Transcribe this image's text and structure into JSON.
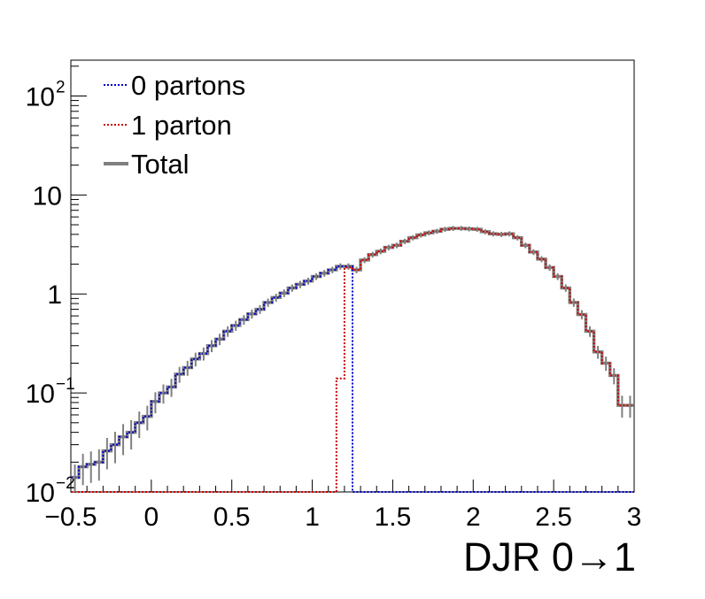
{
  "chart_data": {
    "type": "line",
    "xlabel": "DJR 0→1",
    "y_scale": "log",
    "xlim": [
      -0.5,
      3.0
    ],
    "ylim": [
      0.01,
      230
    ],
    "grid": false,
    "legend_position": "top-left",
    "x_ticks": [
      "−0.5",
      "0",
      "0.5",
      "1",
      "1.5",
      "2",
      "2.5",
      "3"
    ],
    "x_tick_values": [
      -0.5,
      0,
      0.5,
      1,
      1.5,
      2,
      2.5,
      3
    ],
    "y_ticks": [
      {
        "value": 0.01,
        "base": "10",
        "exp": "−2"
      },
      {
        "value": 0.1,
        "base": "10",
        "exp": "−1"
      },
      {
        "value": 1,
        "base": "1",
        "exp": ""
      },
      {
        "value": 10,
        "base": "10",
        "exp": ""
      },
      {
        "value": 100,
        "base": "10",
        "exp": "2"
      }
    ],
    "bin_edges": [
      -0.5,
      -0.45,
      -0.4,
      -0.35,
      -0.3,
      -0.25,
      -0.2,
      -0.15,
      -0.1,
      -0.05,
      0.0,
      0.05,
      0.1,
      0.15,
      0.2,
      0.25,
      0.3,
      0.35,
      0.4,
      0.45,
      0.5,
      0.55,
      0.6,
      0.65,
      0.7,
      0.75,
      0.8,
      0.85,
      0.9,
      0.95,
      1.0,
      1.05,
      1.1,
      1.15,
      1.2,
      1.25,
      1.3,
      1.35,
      1.4,
      1.45,
      1.5,
      1.55,
      1.6,
      1.65,
      1.7,
      1.75,
      1.8,
      1.85,
      1.9,
      1.95,
      2.0,
      2.05,
      2.1,
      2.15,
      2.2,
      2.25,
      2.3,
      2.35,
      2.4,
      2.45,
      2.5,
      2.55,
      2.6,
      2.65,
      2.7,
      2.75,
      2.8,
      2.85,
      2.9,
      2.95,
      3.0
    ],
    "series": [
      {
        "name": "0 partons",
        "color": "#0000cc",
        "line_style": "dotted",
        "values": [
          0.014,
          0.018,
          0.019,
          0.02,
          0.026,
          0.03,
          0.036,
          0.04,
          0.05,
          0.058,
          0.082,
          0.1,
          0.115,
          0.155,
          0.18,
          0.22,
          0.25,
          0.3,
          0.35,
          0.42,
          0.48,
          0.55,
          0.63,
          0.7,
          0.82,
          0.92,
          1.02,
          1.15,
          1.25,
          1.35,
          1.5,
          1.62,
          1.75,
          1.9,
          1.9,
          0.01,
          0.01,
          0.01,
          0.01,
          0.01,
          0.01,
          0.01,
          0.01,
          0.01,
          0.01,
          0.01,
          0.01,
          0.01,
          0.01,
          0.01,
          0.01,
          0.01,
          0.01,
          0.01,
          0.01,
          0.01,
          0.01,
          0.01,
          0.01,
          0.01,
          0.01,
          0.01,
          0.01,
          0.01,
          0.01,
          0.01,
          0.01,
          0.01,
          0.01,
          0.01
        ]
      },
      {
        "name": "1 parton",
        "color": "#cc0000",
        "line_style": "dotted",
        "values": [
          0.01,
          0.01,
          0.01,
          0.01,
          0.01,
          0.01,
          0.01,
          0.01,
          0.01,
          0.01,
          0.01,
          0.01,
          0.01,
          0.01,
          0.01,
          0.01,
          0.01,
          0.01,
          0.01,
          0.01,
          0.01,
          0.01,
          0.01,
          0.01,
          0.01,
          0.01,
          0.01,
          0.01,
          0.01,
          0.01,
          0.01,
          0.01,
          0.01,
          0.14,
          1.85,
          1.75,
          2.2,
          2.5,
          2.7,
          2.95,
          3.1,
          3.4,
          3.7,
          3.95,
          4.15,
          4.3,
          4.5,
          4.6,
          4.6,
          4.55,
          4.5,
          4.25,
          4.05,
          4.0,
          4.05,
          3.7,
          3.1,
          2.65,
          2.25,
          1.85,
          1.5,
          1.15,
          0.82,
          0.62,
          0.42,
          0.26,
          0.2,
          0.15,
          0.075,
          0.075
        ]
      },
      {
        "name": "Total",
        "color": "#808080",
        "line_style": "solid",
        "values": [
          0.014,
          0.018,
          0.019,
          0.02,
          0.026,
          0.03,
          0.036,
          0.04,
          0.05,
          0.058,
          0.082,
          0.1,
          0.115,
          0.155,
          0.18,
          0.22,
          0.25,
          0.3,
          0.35,
          0.42,
          0.48,
          0.55,
          0.63,
          0.7,
          0.82,
          0.92,
          1.02,
          1.15,
          1.25,
          1.35,
          1.5,
          1.62,
          1.75,
          1.9,
          1.9,
          1.75,
          2.2,
          2.5,
          2.7,
          2.95,
          3.1,
          3.4,
          3.7,
          3.95,
          4.15,
          4.3,
          4.5,
          4.6,
          4.6,
          4.55,
          4.5,
          4.25,
          4.05,
          4.0,
          4.05,
          3.7,
          3.1,
          2.65,
          2.25,
          1.85,
          1.5,
          1.15,
          0.82,
          0.62,
          0.42,
          0.26,
          0.2,
          0.15,
          0.075,
          0.075
        ]
      }
    ]
  }
}
